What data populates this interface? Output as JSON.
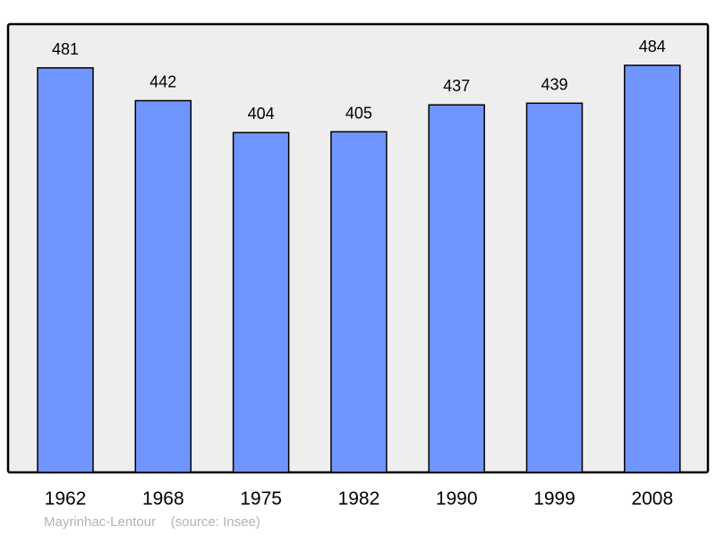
{
  "chart_data": {
    "type": "bar",
    "categories": [
      "1962",
      "1968",
      "1975",
      "1982",
      "1990",
      "1999",
      "2008"
    ],
    "values": [
      481,
      442,
      404,
      405,
      437,
      439,
      484
    ],
    "title": "",
    "xlabel": "",
    "ylabel": "",
    "ylim": [
      0,
      533
    ],
    "grid": false,
    "data_labels": true,
    "bar_color": "#7095ff",
    "background_color": "#eeeeee"
  },
  "footer": {
    "place": "Mayrinhac-Lentour",
    "source": "(source: Insee)"
  }
}
